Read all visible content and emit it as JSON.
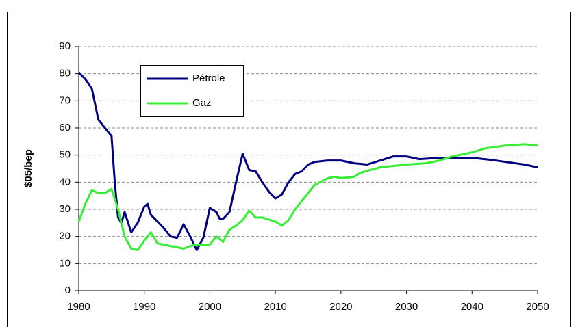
{
  "chart_data": {
    "type": "line",
    "ylabel": "$05/bep",
    "xlim": [
      1980,
      2050
    ],
    "xticks": [
      1980,
      1990,
      2000,
      2010,
      2020,
      2030,
      2040,
      2050
    ],
    "ylim": [
      0,
      90
    ],
    "yticks": [
      0,
      10,
      20,
      30,
      40,
      50,
      60,
      70,
      80,
      90
    ],
    "grid": true,
    "legend": "upper left",
    "series": [
      {
        "name": "Pétrole",
        "color": "#000080",
        "x": [
          1980,
          1981,
          1982,
          1983,
          1984,
          1985,
          1985.5,
          1986,
          1986.5,
          1987,
          1988,
          1989,
          1990,
          1990.5,
          1991,
          1992,
          1993,
          1994,
          1995,
          1996,
          1997,
          1998,
          1999,
          2000,
          2001,
          2001.5,
          2002,
          2003,
          2004,
          2005,
          2006,
          2007,
          2008,
          2009,
          2010,
          2011,
          2012,
          2013,
          2014,
          2015,
          2016,
          2018,
          2020,
          2022,
          2024,
          2026,
          2028,
          2030,
          2032,
          2035,
          2040,
          2043,
          2046,
          2048,
          2050
        ],
        "values": [
          80.5,
          78,
          74.5,
          63,
          60,
          57,
          40,
          27,
          25,
          29,
          21.5,
          25,
          31,
          32,
          28,
          25.5,
          23,
          20,
          19.5,
          24.5,
          20,
          15,
          19.5,
          30.5,
          29,
          26.5,
          26.5,
          29,
          40,
          50.5,
          44.5,
          44,
          40,
          36.5,
          34,
          35.5,
          40,
          43,
          44,
          46.5,
          47.5,
          48,
          48,
          47,
          46.5,
          48,
          49.5,
          49.5,
          48.5,
          49,
          49,
          48.2,
          47.2,
          46.5,
          45.5
        ]
      },
      {
        "name": "Gaz",
        "color": "#33ee33",
        "x": [
          1980,
          1981,
          1982,
          1983,
          1984,
          1985,
          1986,
          1987,
          1988,
          1989,
          1990,
          1991,
          1992,
          1993,
          1994,
          1995,
          1996,
          1997,
          1998,
          2000,
          2001,
          2002,
          2003,
          2004,
          2005,
          2006,
          2007,
          2008,
          2010,
          2011,
          2012,
          2013,
          2014,
          2015,
          2016,
          2018,
          2019,
          2020,
          2022,
          2023,
          2026,
          2030,
          2033,
          2035,
          2037,
          2040,
          2042,
          2045,
          2048,
          2050
        ],
        "values": [
          25.5,
          32,
          37,
          36,
          36,
          37.5,
          30,
          20,
          15.5,
          15,
          18.5,
          21.5,
          17.5,
          17,
          16.5,
          16,
          15.5,
          16.5,
          17,
          17,
          20,
          18,
          22.5,
          24,
          26,
          29.5,
          27,
          27,
          25.5,
          24,
          26,
          30,
          33,
          36,
          39,
          41.5,
          42,
          41.5,
          42,
          43.5,
          45.5,
          46.5,
          47,
          48,
          49.5,
          51,
          52.5,
          53.5,
          54,
          53.5
        ]
      }
    ]
  }
}
